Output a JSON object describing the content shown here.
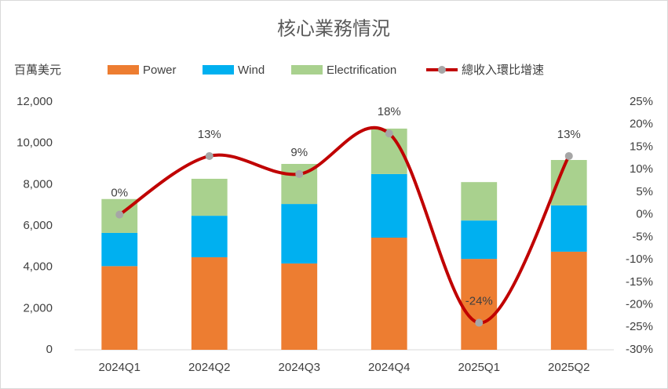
{
  "chart_data": {
    "type": "bar-line",
    "title": "核心業務情況",
    "y_label": "百萬美元",
    "categories": [
      "2024Q1",
      "2024Q2",
      "2024Q3",
      "2024Q4",
      "2025Q1",
      "2025Q2"
    ],
    "series": [
      {
        "name": "Power",
        "color": "#ed7d31",
        "values": [
          4050,
          4480,
          4180,
          5430,
          4400,
          4750
        ]
      },
      {
        "name": "Wind",
        "color": "#00b0f0",
        "values": [
          1610,
          2010,
          2880,
          3080,
          1860,
          2240
        ]
      },
      {
        "name": "Electrification",
        "color": "#a9d18e",
        "values": [
          1640,
          1790,
          1940,
          2200,
          1860,
          2200
        ]
      },
      {
        "name": "總收入環比增速",
        "color": "#c00000",
        "type": "line",
        "axis": "y2",
        "marker_color": "#a6a6a6",
        "values": [
          0,
          13,
          9,
          18,
          -24,
          13
        ],
        "value_labels": [
          "0%",
          "13%",
          "9%",
          "18%",
          "-24%",
          "13%"
        ]
      }
    ],
    "ylim": [
      0,
      12000
    ],
    "yticks": [
      0,
      {
        "value": 2000,
        "label": "2,000"
      },
      {
        "value": 4000,
        "label": "4,000"
      },
      {
        "value": 6000,
        "label": "6,000"
      },
      {
        "value": 8000,
        "label": "8,000"
      },
      {
        "value": 10000,
        "label": "10,000"
      },
      {
        "value": 12000,
        "label": "12,000"
      }
    ],
    "y2lim": [
      -30,
      25
    ],
    "y2ticks": [
      {
        "value": -30,
        "label": "-30%"
      },
      {
        "value": -25,
        "label": "-25%"
      },
      {
        "value": -20,
        "label": "-20%"
      },
      {
        "value": -15,
        "label": "-15%"
      },
      {
        "value": -10,
        "label": "-10%"
      },
      {
        "value": -5,
        "label": "-5%"
      },
      {
        "value": 0,
        "label": "0%"
      },
      {
        "value": 5,
        "label": "5%"
      },
      {
        "value": 10,
        "label": "10%"
      },
      {
        "value": 15,
        "label": "15%"
      },
      {
        "value": 20,
        "label": "20%"
      },
      {
        "value": 25,
        "label": "25%"
      }
    ],
    "grid": false,
    "legend": "top"
  }
}
